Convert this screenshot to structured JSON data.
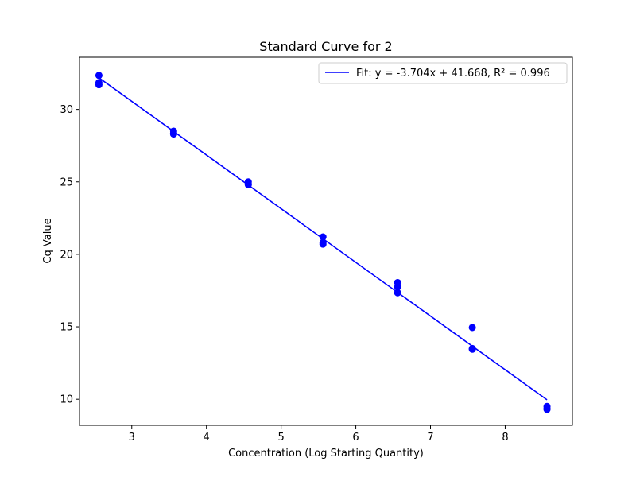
{
  "chart_data": {
    "type": "scatter",
    "title": "Standard Curve for 2",
    "xlabel": "Concentration (Log Starting Quantity)",
    "ylabel": "Cq Value",
    "xlim": [
      2.3,
      8.9
    ],
    "ylim": [
      8.2,
      33.6
    ],
    "xticks": [
      3,
      4,
      5,
      6,
      7,
      8
    ],
    "yticks": [
      10,
      15,
      20,
      25,
      30
    ],
    "grid": false,
    "legend_position": "top-right",
    "point_color": "#0000ff",
    "line_color": "#0000ff",
    "points": [
      {
        "x": 2.56,
        "y": 32.35
      },
      {
        "x": 2.56,
        "y": 31.85
      },
      {
        "x": 2.56,
        "y": 31.7
      },
      {
        "x": 3.56,
        "y": 28.5
      },
      {
        "x": 3.56,
        "y": 28.35
      },
      {
        "x": 3.56,
        "y": 28.3
      },
      {
        "x": 4.56,
        "y": 25.0
      },
      {
        "x": 4.56,
        "y": 24.85
      },
      {
        "x": 4.56,
        "y": 24.8
      },
      {
        "x": 5.56,
        "y": 21.2
      },
      {
        "x": 5.56,
        "y": 20.8
      },
      {
        "x": 5.56,
        "y": 20.7
      },
      {
        "x": 6.56,
        "y": 18.05
      },
      {
        "x": 6.56,
        "y": 17.75
      },
      {
        "x": 6.56,
        "y": 17.35
      },
      {
        "x": 7.56,
        "y": 14.95
      },
      {
        "x": 7.56,
        "y": 13.5
      },
      {
        "x": 7.56,
        "y": 13.45
      },
      {
        "x": 8.56,
        "y": 9.5
      },
      {
        "x": 8.56,
        "y": 9.35
      },
      {
        "x": 8.56,
        "y": 9.3
      }
    ],
    "fit": {
      "label": "Fit: y = -3.704x + 41.668, R² = 0.996",
      "slope": -3.704,
      "intercept": 41.668,
      "x_range": [
        2.56,
        8.56
      ]
    }
  }
}
